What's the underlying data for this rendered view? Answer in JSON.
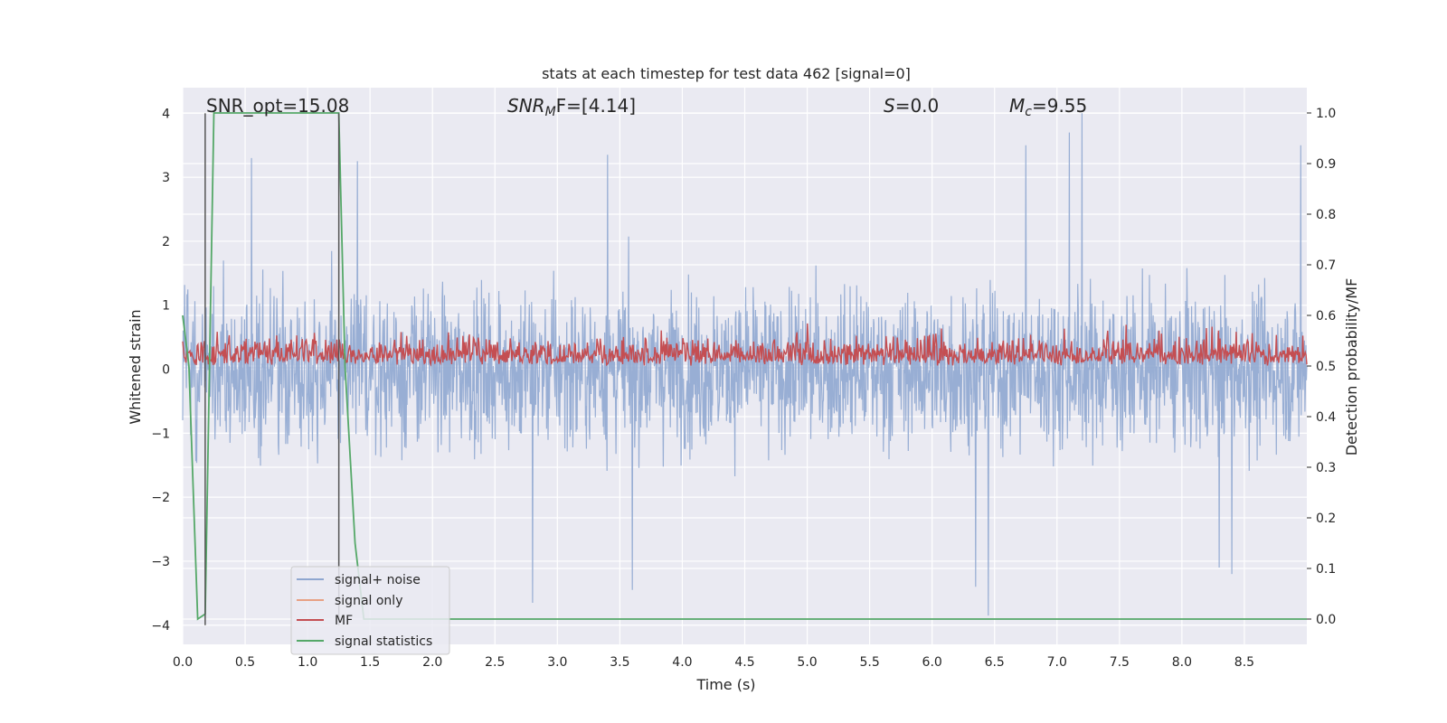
{
  "chart_data": {
    "type": "line",
    "title": "stats at each timestep for test data 462 [signal=0]",
    "xlabel": "Time (s)",
    "ylabel_left": "Whitened strain",
    "ylabel_right": "Detection probability/MF",
    "xlim": [
      0.0,
      9.0
    ],
    "ylim_left": [
      -4.3,
      4.4
    ],
    "ylim_right": [
      -0.05,
      1.05
    ],
    "x_ticks": [
      "0.0",
      "0.5",
      "1.0",
      "1.5",
      "2.0",
      "2.5",
      "3.0",
      "3.5",
      "4.0",
      "4.5",
      "5.0",
      "5.5",
      "6.0",
      "6.5",
      "7.0",
      "7.5",
      "8.0",
      "8.5"
    ],
    "y_ticks_left": [
      "-4",
      "-3",
      "-2",
      "-1",
      "0",
      "1",
      "2",
      "3",
      "4"
    ],
    "y_ticks_right": [
      "0.0",
      "0.1",
      "0.2",
      "0.3",
      "0.4",
      "0.5",
      "0.6",
      "0.7",
      "0.8",
      "0.9",
      "1.0"
    ],
    "grid": true,
    "annotations": {
      "snr_opt": "SNR_opt=15.08",
      "snr_mf_prefix": "SNR",
      "snr_mf_sub": "M",
      "snr_mf_suffix": "F=[4.14]",
      "s_var": "S",
      "s_value": "=0.0",
      "mc_var": "M",
      "mc_sub": "c",
      "mc_value": "=9.55"
    },
    "legend": {
      "position": "lower-left",
      "entries": [
        {
          "label": "signal+ noise",
          "color": "#8fa7d0"
        },
        {
          "label": "signal only",
          "color": "#e8a184"
        },
        {
          "label": "MF",
          "color": "#c44e52"
        },
        {
          "label": "signal statistics",
          "color": "#55a868"
        }
      ]
    },
    "series": [
      {
        "name": "signal+ noise",
        "axis": "left",
        "color": "#8fa7d0",
        "description": "whitened noise, approx range -3.8 to 3.8",
        "noise_amplitude": 1.0,
        "peaks": [
          [
            0.55,
            3.3
          ],
          [
            1.4,
            3.25
          ],
          [
            3.4,
            3.35
          ],
          [
            6.75,
            3.5
          ],
          [
            7.1,
            3.7
          ],
          [
            7.2,
            4.0
          ],
          [
            8.95,
            3.5
          ],
          [
            2.8,
            -3.65
          ],
          [
            3.6,
            -3.45
          ],
          [
            6.35,
            -3.4
          ],
          [
            6.45,
            -3.85
          ],
          [
            8.3,
            -3.1
          ],
          [
            8.4,
            -3.2
          ]
        ]
      },
      {
        "name": "signal only",
        "axis": "left",
        "color": "#e8a184",
        "values": []
      },
      {
        "name": "MF",
        "axis": "right",
        "color": "#c44e52",
        "description": "matched filter output, approx range 0.5 to 0.62",
        "baseline": 0.5,
        "amplitude": 0.12
      },
      {
        "name": "signal statistics",
        "axis": "right",
        "color": "#55a868",
        "x": [
          0.0,
          0.05,
          0.12,
          0.18,
          0.25,
          1.25,
          1.3,
          1.38,
          1.45,
          9.0
        ],
        "y": [
          0.6,
          0.5,
          0.0,
          0.01,
          1.0,
          1.0,
          0.5,
          0.15,
          0.0,
          0.0
        ]
      }
    ],
    "vlines": {
      "color": "#555555",
      "x": [
        0.18,
        1.25
      ],
      "y_range_left": [
        -4.0,
        4.0
      ]
    }
  }
}
